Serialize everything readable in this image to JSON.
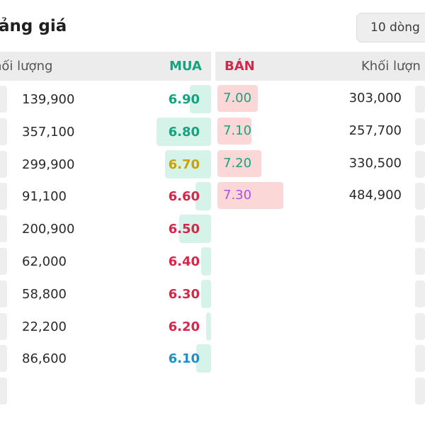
{
  "header": {
    "title": "ảng giá",
    "rows_selector": "10 dòng"
  },
  "columns": {
    "bid_volume": "hối lượng",
    "bid": "MUA",
    "ask": "BÁN",
    "ask_volume": "Khối lượn"
  },
  "colors": {
    "green": "#14a37f",
    "yellow": "#c9a10a",
    "red": "#d8264b",
    "blue": "#1e90c8",
    "purple": "#b44ce6"
  },
  "bids": [
    {
      "volume": "139,900",
      "price": "6.90",
      "color": "green"
    },
    {
      "volume": "357,100",
      "price": "6.80",
      "color": "green"
    },
    {
      "volume": "299,900",
      "price": "6.70",
      "color": "yellow"
    },
    {
      "volume": "91,100",
      "price": "6.60",
      "color": "red"
    },
    {
      "volume": "200,900",
      "price": "6.50",
      "color": "red"
    },
    {
      "volume": "62,000",
      "price": "6.40",
      "color": "red"
    },
    {
      "volume": "58,800",
      "price": "6.30",
      "color": "red"
    },
    {
      "volume": "22,200",
      "price": "6.20",
      "color": "red"
    },
    {
      "volume": "86,600",
      "price": "6.10",
      "color": "blue"
    }
  ],
  "asks": [
    {
      "price": "7.00",
      "volume": "303,000",
      "color": "green"
    },
    {
      "price": "7.10",
      "volume": "257,700",
      "color": "green"
    },
    {
      "price": "7.20",
      "volume": "330,500",
      "color": "green"
    },
    {
      "price": "7.30",
      "volume": "484,900",
      "color": "purple"
    }
  ]
}
